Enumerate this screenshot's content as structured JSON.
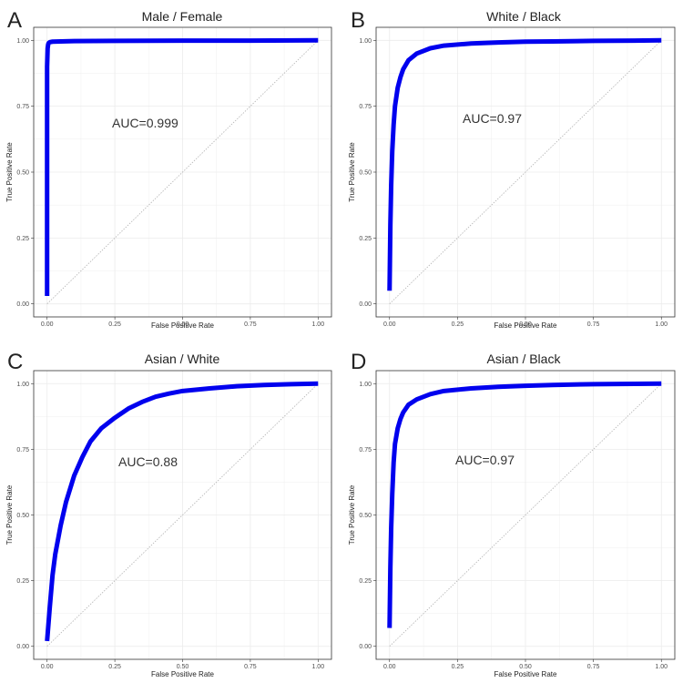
{
  "colors": {
    "curve": "#0000ee",
    "diagonal": "#b3b3b3",
    "grid": "#ebebeb",
    "frame": "#333333"
  },
  "chart_data": [
    {
      "type": "line",
      "panel": "A",
      "title": "Male / Female",
      "annotation": "AUC=0.999",
      "xlabel": "False Positive Rate",
      "ylabel": "True Positive Rate",
      "xlim": [
        0,
        1
      ],
      "ylim": [
        0,
        1
      ],
      "xticks": [
        "0.00",
        "0.25",
        "0.50",
        "0.75",
        "1.00"
      ],
      "yticks": [
        "0.00",
        "0.25",
        "0.50",
        "0.75",
        "1.00"
      ],
      "grid": true,
      "series": [
        {
          "x": [
            0.0,
            0.0,
            0.0,
            0.002,
            0.004,
            0.006,
            0.01,
            0.02,
            0.05,
            0.1,
            0.25,
            0.5,
            0.75,
            1.0
          ],
          "y": [
            0.03,
            0.5,
            0.9,
            0.97,
            0.985,
            0.99,
            0.993,
            0.995,
            0.996,
            0.997,
            0.998,
            0.999,
            0.999,
            1.0
          ]
        }
      ]
    },
    {
      "type": "line",
      "panel": "B",
      "title": "White / Black",
      "annotation": "AUC=0.97",
      "xlabel": "False Positive Rate",
      "ylabel": "True Positive Rate",
      "xlim": [
        0,
        1
      ],
      "ylim": [
        0,
        1
      ],
      "xticks": [
        "0.00",
        "0.25",
        "0.50",
        "0.75",
        "1.00"
      ],
      "yticks": [
        "0.00",
        "0.25",
        "0.50",
        "0.75",
        "1.00"
      ],
      "grid": true,
      "series": [
        {
          "x": [
            0.0,
            0.003,
            0.006,
            0.01,
            0.015,
            0.02,
            0.03,
            0.04,
            0.05,
            0.07,
            0.1,
            0.15,
            0.2,
            0.3,
            0.4,
            0.5,
            0.6,
            0.75,
            0.9,
            1.0
          ],
          "y": [
            0.05,
            0.3,
            0.45,
            0.58,
            0.68,
            0.75,
            0.82,
            0.86,
            0.89,
            0.925,
            0.95,
            0.97,
            0.98,
            0.988,
            0.992,
            0.995,
            0.996,
            0.998,
            0.999,
            1.0
          ]
        }
      ]
    },
    {
      "type": "line",
      "panel": "C",
      "title": "Asian / White",
      "annotation": "AUC=0.88",
      "xlabel": "False Positive Rate",
      "ylabel": "True Positive Rate",
      "xlim": [
        0,
        1
      ],
      "ylim": [
        0,
        1
      ],
      "xticks": [
        "0.00",
        "0.25",
        "0.50",
        "0.75",
        "1.00"
      ],
      "yticks": [
        "0.00",
        "0.25",
        "0.50",
        "0.75",
        "1.00"
      ],
      "grid": true,
      "series": [
        {
          "x": [
            0.0,
            0.01,
            0.02,
            0.03,
            0.05,
            0.07,
            0.1,
            0.13,
            0.16,
            0.2,
            0.25,
            0.3,
            0.35,
            0.4,
            0.45,
            0.5,
            0.6,
            0.7,
            0.8,
            0.9,
            1.0
          ],
          "y": [
            0.02,
            0.15,
            0.27,
            0.35,
            0.46,
            0.55,
            0.65,
            0.72,
            0.78,
            0.83,
            0.87,
            0.905,
            0.93,
            0.95,
            0.962,
            0.972,
            0.982,
            0.99,
            0.995,
            0.998,
            1.0
          ]
        }
      ]
    },
    {
      "type": "line",
      "panel": "D",
      "title": "Asian / Black",
      "annotation": "AUC=0.97",
      "xlabel": "False Positive Rate",
      "ylabel": "True Positive Rate",
      "xlim": [
        0,
        1
      ],
      "ylim": [
        0,
        1
      ],
      "xticks": [
        "0.00",
        "0.25",
        "0.50",
        "0.75",
        "1.00"
      ],
      "yticks": [
        "0.00",
        "0.25",
        "0.50",
        "0.75",
        "1.00"
      ],
      "grid": true,
      "series": [
        {
          "x": [
            0.0,
            0.003,
            0.006,
            0.01,
            0.015,
            0.02,
            0.03,
            0.04,
            0.05,
            0.07,
            0.1,
            0.15,
            0.2,
            0.3,
            0.4,
            0.5,
            0.6,
            0.75,
            0.9,
            1.0
          ],
          "y": [
            0.07,
            0.3,
            0.45,
            0.58,
            0.7,
            0.77,
            0.83,
            0.865,
            0.89,
            0.92,
            0.94,
            0.96,
            0.972,
            0.982,
            0.988,
            0.992,
            0.995,
            0.998,
            0.999,
            1.0
          ]
        }
      ]
    }
  ]
}
